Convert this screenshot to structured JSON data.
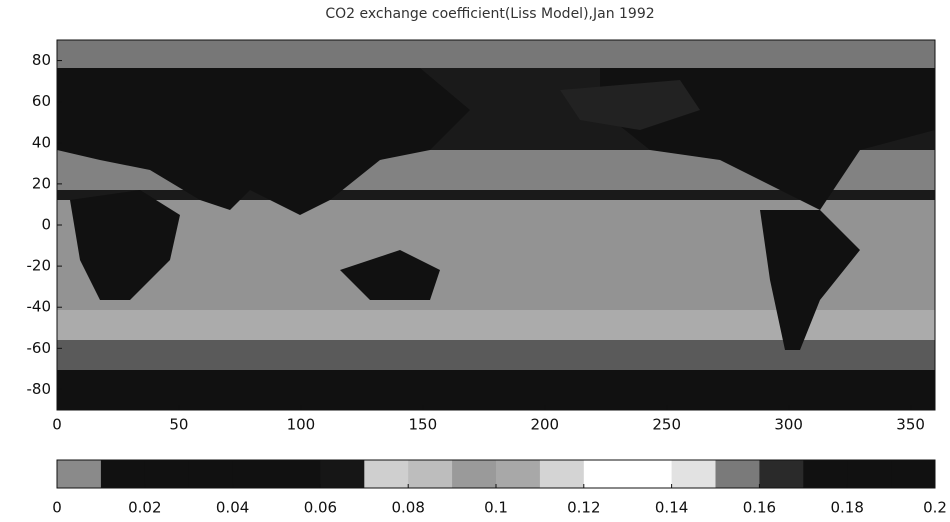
{
  "chart_data": {
    "type": "map",
    "title": "CO2 exchange coefficient(Liss Model),Jan 1992",
    "xlim": [
      0,
      360
    ],
    "xticks": [
      0,
      50,
      100,
      150,
      200,
      250,
      300,
      350
    ],
    "ylim": [
      -90,
      90
    ],
    "yticks": [
      80,
      60,
      40,
      20,
      0,
      -20,
      -40,
      -60,
      -80
    ],
    "colorbar": {
      "range": [
        0,
        0.2
      ],
      "ticks": [
        0,
        0.02,
        0.04,
        0.06,
        0.08,
        0.1,
        0.12,
        0.14,
        0.16,
        0.18,
        0.2
      ],
      "colors": [
        "#8a8a8a",
        "#111111",
        "#111111",
        "#111111",
        "#111111",
        "#111111",
        "#161616",
        "#cfcfcf",
        "#bdbdbd",
        "#9a9a9a",
        "#a8a8a8",
        "#d4d4d4",
        "#ffffff",
        "#ffffff",
        "#e2e2e2",
        "#7a7a7a",
        "#2a2a2a",
        "#111111",
        "#111111",
        "#111111"
      ]
    }
  }
}
